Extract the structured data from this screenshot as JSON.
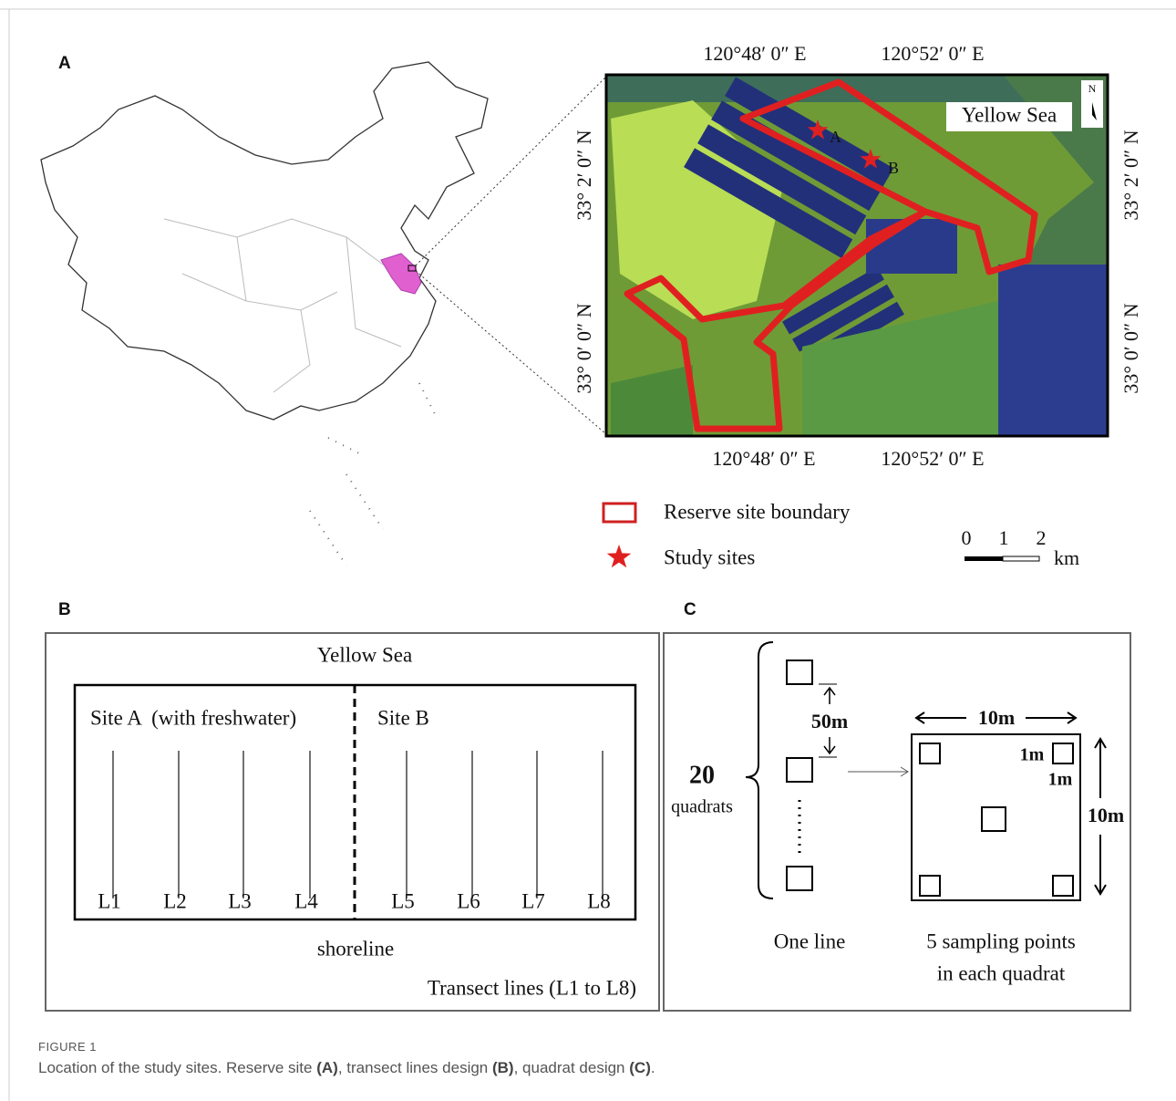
{
  "panel_a": {
    "label": "A",
    "coords_top": [
      "120°48′ 0″ E",
      "120°52′ 0″ E"
    ],
    "coords_bottom": [
      "120°48′ 0″ E",
      "120°52′ 0″ E"
    ],
    "coords_left": [
      "33° 2′ 0″ N",
      "33° 0′ 0″ N"
    ],
    "coords_right": [
      "33° 2′ 0″ N",
      "33° 0′ 0″ N"
    ],
    "sea_label": "Yellow Sea",
    "north": "N",
    "site_labels": [
      "A",
      "B"
    ],
    "legend": [
      "Reserve site boundary",
      "Study sites"
    ],
    "scale": {
      "ticks": [
        "0",
        "1",
        "2"
      ],
      "unit": "km"
    }
  },
  "panel_b": {
    "label": "B",
    "sea_label": "Yellow Sea",
    "sites": [
      "Site A  (with freshwater)",
      "Site B"
    ],
    "lines": [
      "L1",
      "L2",
      "L3",
      "L4",
      "L5",
      "L6",
      "L7",
      "L8"
    ],
    "shoreline": "shoreline",
    "note": "Transect lines (L1 to L8)"
  },
  "panel_c": {
    "label": "C",
    "count": "20",
    "count_unit": "quadrats",
    "spacing": "50m",
    "line_label": "One line",
    "quadrat_width": "10m",
    "quadrat_height": "10m",
    "point_width": "1m",
    "point_height": "1m",
    "points_caption": [
      "5 sampling points",
      "in each quadrat"
    ]
  },
  "caption": {
    "figure": "FIGURE 1",
    "parts": [
      "Location of the study sites. Reserve site ",
      "(A)",
      ", transect lines design ",
      "(B)",
      ", quadrat design ",
      "(C)",
      "."
    ]
  }
}
